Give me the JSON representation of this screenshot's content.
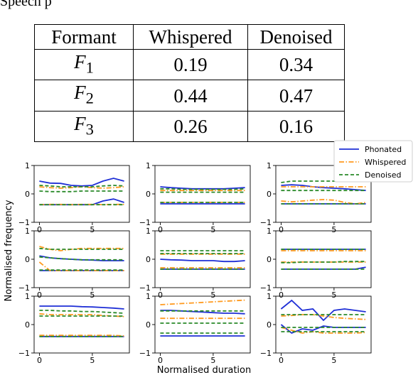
{
  "intro_text": "Speech p",
  "table": {
    "headers": [
      "Formant",
      "Whispered",
      "Denoised"
    ],
    "rows": [
      {
        "formant": "F",
        "sub": "1",
        "whispered": "0.19",
        "denoised": "0.34"
      },
      {
        "formant": "F",
        "sub": "2",
        "whispered": "0.44",
        "denoised": "0.47"
      },
      {
        "formant": "F",
        "sub": "3",
        "whispered": "0.26",
        "denoised": "0.16"
      }
    ]
  },
  "chart_data": {
    "type": "line",
    "xlabel": "Normalised duration",
    "ylabel": "Normalised frequency",
    "xticks": [
      0,
      5
    ],
    "yticks": [
      -1,
      0,
      1
    ],
    "xlim": [
      -0.5,
      8.5
    ],
    "ylim": [
      -1,
      1
    ],
    "legend": {
      "placement": "top-right",
      "entries": [
        "Phonated",
        "Whispered",
        "Denoised"
      ]
    },
    "colors": {
      "Phonated": "#1f2fd6",
      "Whispered": "#ff9a1f",
      "Denoised": "#2a8a2a"
    },
    "x": [
      0,
      1,
      2,
      3,
      4,
      5,
      6,
      7,
      8
    ],
    "panels": [
      {
        "series": [
          {
            "name": "Phonated",
            "lines": [
              [
                0.45,
                0.38,
                0.37,
                0.3,
                0.28,
                0.3,
                0.45,
                0.55,
                0.45
              ],
              [
                -0.38,
                -0.38,
                -0.38,
                -0.38,
                -0.38,
                -0.38,
                -0.25,
                -0.18,
                -0.3
              ]
            ]
          },
          {
            "name": "Whispered",
            "lines": [
              [
                0.25,
                0.22,
                0.2,
                0.22,
                0.25,
                0.22,
                0.2,
                0.22,
                0.25
              ],
              [
                -0.38,
                -0.37,
                -0.37,
                -0.38,
                -0.37,
                -0.37,
                -0.38,
                -0.37,
                -0.37
              ]
            ]
          },
          {
            "name": "Denoised",
            "lines": [
              [
                0.3,
                0.28,
                0.25,
                0.25,
                0.25,
                0.25,
                0.28,
                0.3,
                0.28
              ],
              [
                0.1,
                0.08,
                0.08,
                0.08,
                0.1,
                0.1,
                0.1,
                0.1,
                0.1
              ],
              [
                -0.38,
                -0.38,
                -0.38,
                -0.38,
                -0.38,
                -0.38,
                -0.38,
                -0.38,
                -0.38
              ]
            ]
          }
        ]
      },
      {
        "series": [
          {
            "name": "Phonated",
            "lines": [
              [
                0.25,
                0.22,
                0.2,
                0.18,
                0.18,
                0.18,
                0.18,
                0.2,
                0.22
              ],
              [
                -0.35,
                -0.35,
                -0.35,
                -0.35,
                -0.35,
                -0.35,
                -0.35,
                -0.35,
                -0.35
              ]
            ]
          },
          {
            "name": "Whispered",
            "lines": [
              [
                0.12,
                0.12,
                0.12,
                0.12,
                0.12,
                0.12,
                0.12,
                0.12,
                0.12
              ],
              [
                -0.3,
                -0.3,
                -0.3,
                -0.3,
                -0.3,
                -0.3,
                -0.3,
                -0.3,
                -0.3
              ]
            ]
          },
          {
            "name": "Denoised",
            "lines": [
              [
                0.18,
                0.18,
                0.16,
                0.16,
                0.16,
                0.16,
                0.16,
                0.16,
                0.18
              ],
              [
                0.06,
                0.06,
                0.06,
                0.06,
                0.06,
                0.06,
                0.06,
                0.06,
                0.06
              ],
              [
                -0.3,
                -0.3,
                -0.3,
                -0.3,
                -0.3,
                -0.3,
                -0.3,
                -0.3,
                -0.3
              ]
            ]
          }
        ]
      },
      {
        "series": [
          {
            "name": "Phonated",
            "lines": [
              [
                0.3,
                0.32,
                0.3,
                0.25,
                0.22,
                0.2,
                0.18,
                0.15,
                0.12
              ],
              [
                -0.35,
                -0.35,
                -0.35,
                -0.35,
                -0.35,
                -0.35,
                -0.35,
                -0.35,
                -0.35
              ]
            ]
          },
          {
            "name": "Whispered",
            "lines": [
              [
                -0.25,
                -0.28,
                -0.25,
                -0.22,
                -0.2,
                -0.22,
                -0.3,
                -0.35,
                -0.3
              ],
              [
                0.25,
                0.25,
                0.25,
                0.25,
                0.25,
                0.25,
                0.25,
                0.25,
                0.25
              ]
            ]
          },
          {
            "name": "Denoised",
            "lines": [
              [
                0.4,
                0.45,
                0.45,
                0.45,
                0.45,
                0.45,
                0.45,
                0.45,
                0.45
              ],
              [
                0.12,
                0.12,
                0.12,
                0.12,
                0.12,
                0.12,
                0.12,
                0.12,
                0.12
              ],
              [
                -0.35,
                -0.35,
                -0.35,
                -0.35,
                -0.35,
                -0.35,
                -0.35,
                -0.35,
                -0.35
              ]
            ]
          }
        ]
      },
      {
        "series": [
          {
            "name": "Phonated",
            "lines": [
              [
                0.12,
                0.05,
                0.02,
                0.0,
                -0.02,
                -0.03,
                -0.05,
                -0.05,
                -0.05
              ],
              [
                -0.4,
                -0.4,
                -0.4,
                -0.4,
                -0.4,
                -0.4,
                -0.4,
                -0.4,
                -0.4
              ]
            ]
          },
          {
            "name": "Whispered",
            "lines": [
              [
                0.45,
                0.35,
                0.3,
                0.35,
                0.38,
                0.38,
                0.38,
                0.38,
                0.38
              ],
              [
                -0.1,
                -0.4,
                -0.4,
                -0.4,
                -0.4,
                -0.4,
                -0.4,
                -0.4,
                -0.4
              ]
            ]
          },
          {
            "name": "Denoised",
            "lines": [
              [
                0.38,
                0.35,
                0.35,
                0.35,
                0.35,
                0.35,
                0.35,
                0.35,
                0.35
              ],
              [
                0.08,
                0.05,
                0.02,
                0.0,
                -0.02,
                -0.02,
                -0.02,
                -0.02,
                -0.02
              ],
              [
                -0.38,
                -0.38,
                -0.38,
                -0.38,
                -0.38,
                -0.38,
                -0.38,
                -0.38,
                -0.38
              ]
            ]
          }
        ]
      },
      {
        "series": [
          {
            "name": "Phonated",
            "lines": [
              [
                0.0,
                -0.02,
                -0.03,
                -0.05,
                -0.05,
                -0.05,
                -0.08,
                -0.08,
                -0.05
              ],
              [
                -0.35,
                -0.35,
                -0.35,
                -0.35,
                -0.35,
                -0.35,
                -0.35,
                -0.35,
                -0.35
              ]
            ]
          },
          {
            "name": "Whispered",
            "lines": [
              [
                0.18,
                0.18,
                0.18,
                0.18,
                0.18,
                0.18,
                0.18,
                0.18,
                0.18
              ],
              [
                -0.3,
                -0.3,
                -0.3,
                -0.3,
                -0.3,
                -0.3,
                -0.3,
                -0.3,
                -0.3
              ]
            ]
          },
          {
            "name": "Denoised",
            "lines": [
              [
                0.3,
                0.3,
                0.3,
                0.3,
                0.3,
                0.3,
                0.3,
                0.3,
                0.3
              ],
              [
                0.2,
                0.2,
                0.2,
                0.2,
                0.2,
                0.2,
                0.2,
                0.2,
                0.2
              ],
              [
                -0.35,
                -0.35,
                -0.35,
                -0.35,
                -0.35,
                -0.35,
                -0.35,
                -0.35,
                -0.35
              ]
            ]
          }
        ]
      },
      {
        "series": [
          {
            "name": "Phonated",
            "lines": [
              [
                0.35,
                0.35,
                0.35,
                0.35,
                0.35,
                0.35,
                0.35,
                0.35,
                0.35
              ],
              [
                -0.35,
                -0.35,
                -0.35,
                -0.35,
                -0.35,
                -0.35,
                -0.35,
                -0.35,
                -0.28
              ]
            ]
          },
          {
            "name": "Whispered",
            "lines": [
              [
                0.3,
                0.3,
                0.3,
                0.3,
                0.3,
                0.3,
                0.3,
                0.3,
                0.3
              ],
              [
                -0.1,
                -0.1,
                -0.1,
                -0.1,
                -0.1,
                -0.1,
                -0.1,
                -0.1,
                -0.1
              ]
            ]
          },
          {
            "name": "Denoised",
            "lines": [
              [
                0.35,
                0.35,
                0.35,
                0.35,
                0.35,
                0.35,
                0.35,
                0.35,
                0.35
              ],
              [
                -0.12,
                -0.12,
                -0.1,
                -0.1,
                -0.1,
                -0.1,
                -0.08,
                -0.08,
                -0.08
              ],
              [
                -0.35,
                -0.35,
                -0.35,
                -0.35,
                -0.35,
                -0.35,
                -0.35,
                -0.35,
                -0.35
              ]
            ]
          }
        ]
      },
      {
        "series": [
          {
            "name": "Phonated",
            "lines": [
              [
                0.65,
                0.65,
                0.65,
                0.65,
                0.63,
                0.62,
                0.6,
                0.58,
                0.55
              ],
              [
                -0.42,
                -0.42,
                -0.42,
                -0.42,
                -0.42,
                -0.42,
                -0.42,
                -0.42,
                -0.42
              ]
            ]
          },
          {
            "name": "Whispered",
            "lines": [
              [
                0.38,
                0.35,
                0.35,
                0.35,
                0.35,
                0.35,
                0.32,
                0.3,
                0.28
              ],
              [
                -0.38,
                -0.38,
                -0.38,
                -0.38,
                -0.38,
                -0.38,
                -0.38,
                -0.38,
                -0.4
              ]
            ]
          },
          {
            "name": "Denoised",
            "lines": [
              [
                0.5,
                0.5,
                0.48,
                0.48,
                0.46,
                0.46,
                0.44,
                0.42,
                0.4
              ],
              [
                0.3,
                0.3,
                0.3,
                0.3,
                0.3,
                0.3,
                0.3,
                0.3,
                0.3
              ],
              [
                -0.42,
                -0.42,
                -0.42,
                -0.42,
                -0.42,
                -0.42,
                -0.42,
                -0.42,
                -0.42
              ]
            ]
          }
        ]
      },
      {
        "series": [
          {
            "name": "Phonated",
            "lines": [
              [
                0.5,
                0.5,
                0.48,
                0.46,
                0.44,
                0.42,
                0.4,
                0.4,
                0.38
              ],
              [
                -0.4,
                -0.4,
                -0.4,
                -0.4,
                -0.4,
                -0.4,
                -0.4,
                -0.4,
                -0.4
              ]
            ]
          },
          {
            "name": "Whispered",
            "lines": [
              [
                0.7,
                0.72,
                0.74,
                0.76,
                0.78,
                0.8,
                0.82,
                0.84,
                0.86
              ],
              [
                0.22,
                0.22,
                0.22,
                0.22,
                0.22,
                0.22,
                0.22,
                0.22,
                0.22
              ]
            ]
          },
          {
            "name": "Denoised",
            "lines": [
              [
                0.48,
                0.48,
                0.48,
                0.48,
                0.48,
                0.48,
                0.48,
                0.48,
                0.48
              ],
              [
                0.05,
                0.05,
                0.05,
                0.05,
                0.05,
                0.05,
                0.05,
                0.05,
                0.05
              ],
              [
                -0.3,
                -0.3,
                -0.3,
                -0.3,
                -0.3,
                -0.3,
                -0.3,
                -0.3,
                -0.3
              ]
            ]
          }
        ]
      },
      {
        "series": [
          {
            "name": "Phonated",
            "lines": [
              [
                0.55,
                0.85,
                0.5,
                0.55,
                0.15,
                0.5,
                0.55,
                0.5,
                0.45
              ],
              [
                0.0,
                -0.3,
                -0.15,
                -0.2,
                -0.05,
                -0.1,
                -0.1,
                -0.1,
                -0.1
              ]
            ]
          },
          {
            "name": "Whispered",
            "lines": [
              [
                -0.1,
                -0.2,
                -0.3,
                -0.25,
                -0.3,
                -0.3,
                -0.3,
                -0.3,
                -0.28
              ],
              [
                0.3,
                0.32,
                0.35,
                0.35,
                0.3,
                0.25,
                0.22,
                0.2,
                0.18
              ]
            ]
          },
          {
            "name": "Denoised",
            "lines": [
              [
                0.35,
                0.35,
                0.35,
                0.35,
                0.35,
                0.35,
                0.35,
                0.35,
                0.35
              ],
              [
                -0.1,
                -0.1,
                -0.1,
                -0.1,
                -0.1,
                -0.1,
                -0.1,
                -0.1,
                -0.1
              ],
              [
                -0.25,
                -0.25,
                -0.25,
                -0.25,
                -0.25,
                -0.25,
                -0.25,
                -0.25,
                -0.25
              ]
            ]
          }
        ]
      }
    ]
  }
}
